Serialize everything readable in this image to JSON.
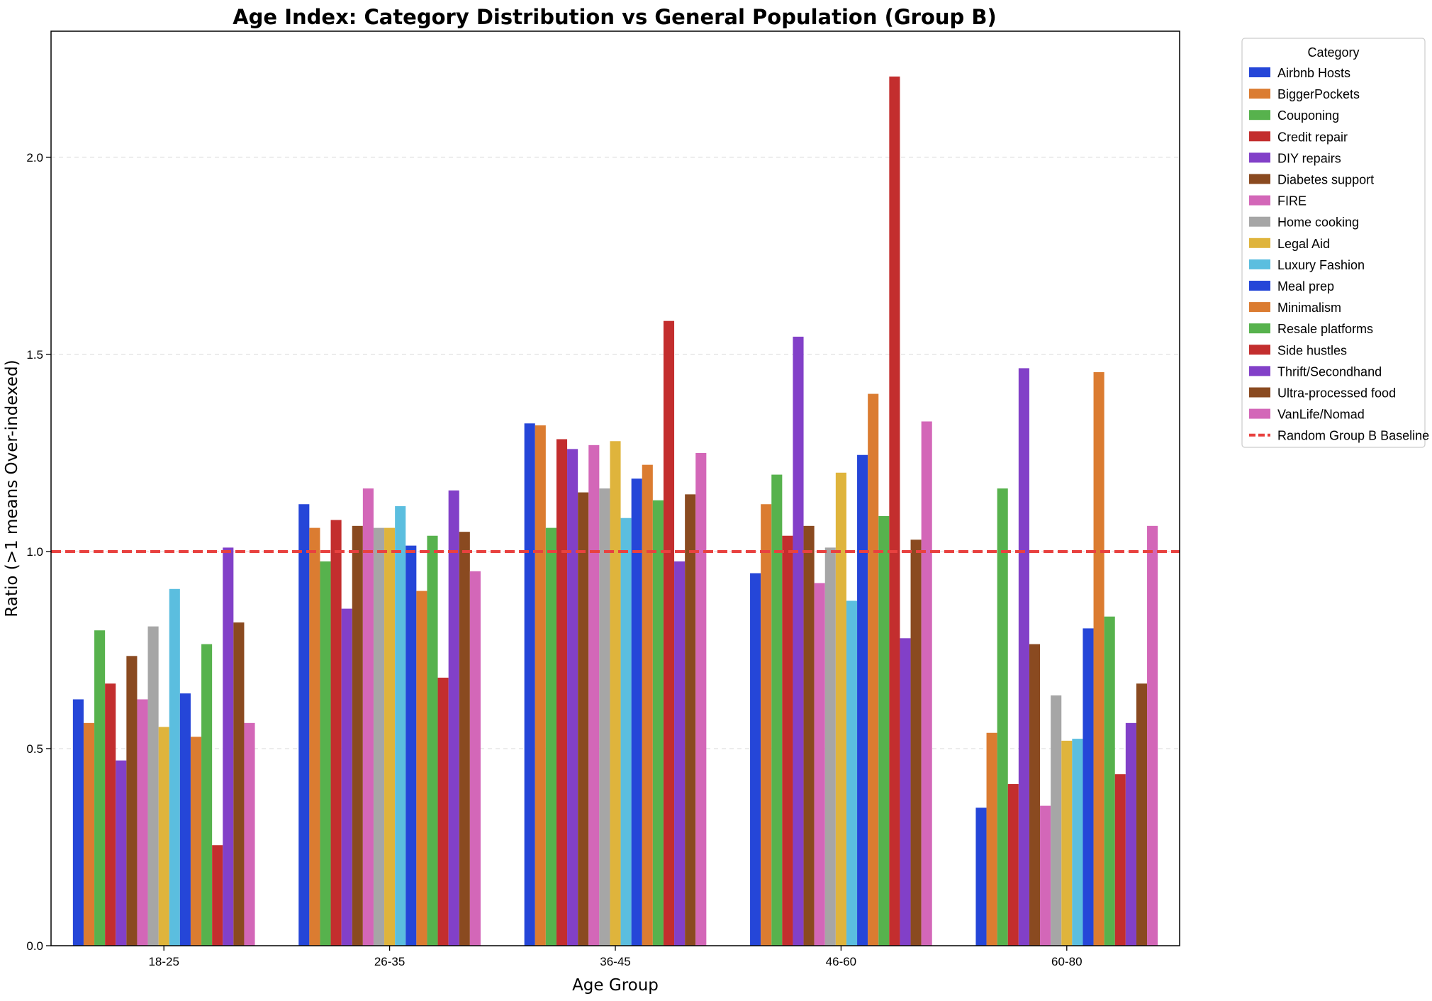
{
  "chart_data": {
    "type": "bar",
    "title": "Age Index: Category Distribution vs General Population (Group B)",
    "xlabel": "Age Group",
    "ylabel": "Ratio (>1 means Over-indexed)",
    "ylim": [
      0,
      2.32
    ],
    "yticks": [
      "0.0",
      "0.5",
      "1.0",
      "1.5",
      "2.0"
    ],
    "grid": "horizontal-dashed",
    "legend_title": "Category",
    "legend_position": "outside-top-right",
    "categories": [
      "18-25",
      "26-35",
      "36-45",
      "46-60",
      "60-80"
    ],
    "baseline": {
      "name": "Random Group B Baseline",
      "value": 1.0,
      "color": "#e8413f"
    },
    "series": [
      {
        "name": "Airbnb Hosts",
        "color": "#2546d8",
        "values": [
          0.625,
          1.12,
          1.325,
          0.945,
          0.35
        ]
      },
      {
        "name": "BiggerPockets",
        "color": "#db7c31",
        "values": [
          0.565,
          1.06,
          1.32,
          1.12,
          0.54
        ]
      },
      {
        "name": "Couponing",
        "color": "#57b24d",
        "values": [
          0.8,
          0.975,
          1.06,
          1.195,
          1.16
        ]
      },
      {
        "name": "Credit repair",
        "color": "#c32e2e",
        "values": [
          0.665,
          1.08,
          1.285,
          1.04,
          0.41
        ]
      },
      {
        "name": "DIY repairs",
        "color": "#8240c8",
        "values": [
          0.47,
          0.855,
          1.26,
          1.545,
          1.465
        ]
      },
      {
        "name": "Diabetes support",
        "color": "#8a4a20",
        "values": [
          0.735,
          1.065,
          1.15,
          1.065,
          0.765
        ]
      },
      {
        "name": "FIRE",
        "color": "#d367b8",
        "values": [
          0.625,
          1.16,
          1.27,
          0.92,
          0.355
        ]
      },
      {
        "name": "Home cooking",
        "color": "#a6a6a6",
        "values": [
          0.81,
          1.06,
          1.16,
          1.01,
          0.635
        ]
      },
      {
        "name": "Legal Aid",
        "color": "#dfb43c",
        "values": [
          0.555,
          1.06,
          1.28,
          1.2,
          0.52
        ]
      },
      {
        "name": "Luxury Fashion",
        "color": "#5bbedf",
        "values": [
          0.905,
          1.115,
          1.085,
          0.875,
          0.525
        ]
      },
      {
        "name": "Meal prep",
        "color": "#2546d8",
        "values": [
          0.64,
          1.015,
          1.185,
          1.245,
          0.805
        ]
      },
      {
        "name": "Minimalism",
        "color": "#db7c31",
        "values": [
          0.53,
          0.9,
          1.22,
          1.4,
          1.455
        ]
      },
      {
        "name": "Resale platforms",
        "color": "#57b24d",
        "values": [
          0.765,
          1.04,
          1.13,
          1.09,
          0.835
        ]
      },
      {
        "name": "Side hustles",
        "color": "#c32e2e",
        "values": [
          0.255,
          0.68,
          1.585,
          2.205,
          0.435
        ]
      },
      {
        "name": "Thrift/Secondhand",
        "color": "#8240c8",
        "values": [
          1.01,
          1.155,
          0.975,
          0.78,
          0.565
        ]
      },
      {
        "name": "Ultra-processed food",
        "color": "#8a4a20",
        "values": [
          0.82,
          1.05,
          1.145,
          1.03,
          0.665
        ]
      },
      {
        "name": "VanLife/Nomad",
        "color": "#d367b8",
        "values": [
          0.565,
          0.95,
          1.25,
          1.33,
          1.065
        ]
      }
    ]
  }
}
